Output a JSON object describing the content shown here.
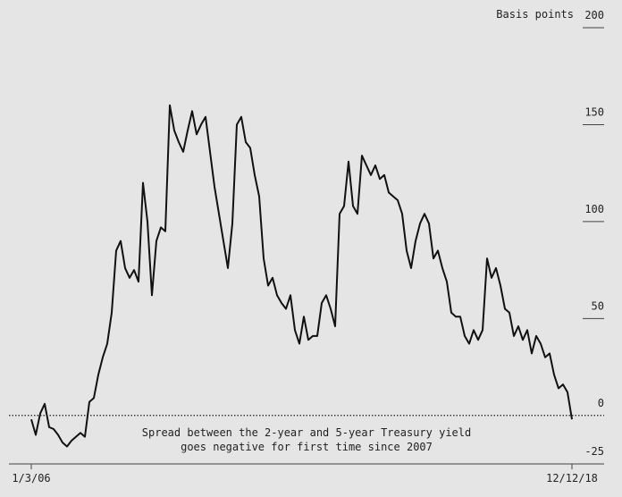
{
  "chart_data": {
    "type": "line",
    "y_label": "Basis points",
    "annotation": [
      "Spread between the 2-year and 5-year Treasury yield",
      "goes negative for first time since 2007"
    ],
    "categories": [
      "1/3/06",
      null,
      null,
      null,
      null,
      null,
      null,
      null,
      null,
      null,
      null,
      null,
      null,
      null,
      null,
      null,
      null,
      null,
      null,
      null,
      null,
      null,
      null,
      null,
      null,
      null,
      null,
      null,
      null,
      null,
      null,
      null,
      null,
      null,
      null,
      null,
      null,
      null,
      null,
      null,
      null,
      null,
      null,
      null,
      null,
      null,
      null,
      null,
      null,
      null,
      null,
      null,
      null,
      null,
      null,
      null,
      null,
      null,
      null,
      null,
      null,
      null,
      null,
      null,
      null,
      null,
      null,
      null,
      null,
      null,
      null,
      null,
      null,
      null,
      null,
      null,
      null,
      null,
      null,
      null,
      null,
      null,
      null,
      null,
      null,
      null,
      null,
      null,
      null,
      null,
      null,
      null,
      null,
      null,
      null,
      null,
      null,
      null,
      null,
      null,
      null,
      null,
      null,
      null,
      null,
      null,
      null,
      null,
      null,
      null,
      null,
      null,
      null,
      null,
      null,
      null,
      null,
      null,
      null,
      null,
      null,
      "12/12/18"
    ],
    "values": [
      -2,
      -10,
      1,
      6,
      -6,
      -7,
      -10,
      -14,
      -16,
      -13,
      -11,
      -9,
      -11,
      7,
      9,
      21,
      30,
      37,
      53,
      85,
      90,
      76,
      71,
      75,
      69,
      120,
      100,
      62,
      90,
      97,
      95,
      160,
      147,
      141,
      136,
      147,
      157,
      145,
      150,
      154,
      136,
      118,
      104,
      90,
      76,
      99,
      150,
      154,
      141,
      138,
      124,
      113,
      81,
      67,
      71,
      62,
      58,
      55,
      62,
      44,
      37,
      51,
      39,
      41,
      41,
      58,
      62,
      55,
      46,
      104,
      108,
      131,
      108,
      104,
      134,
      129,
      124,
      129,
      122,
      124,
      115,
      113,
      111,
      104,
      85,
      76,
      90,
      99,
      104,
      99,
      81,
      85,
      76,
      69,
      53,
      51,
      51,
      41,
      37,
      44,
      39,
      44,
      81,
      71,
      76,
      67,
      55,
      53,
      41,
      46,
      39,
      44,
      32,
      41,
      37,
      30,
      32,
      21,
      14,
      16,
      12,
      -2
    ],
    "color": "#111111",
    "ylim": [
      -25,
      200
    ],
    "yticks": [
      -25,
      0,
      50,
      100,
      150,
      200
    ]
  }
}
